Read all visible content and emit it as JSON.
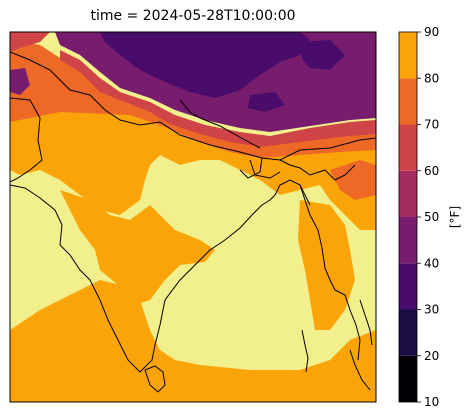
{
  "title": "time = 2024-05-28T10:00:00",
  "colorbar": {
    "label": "[°F]",
    "ticks": [
      "10",
      "20",
      "30",
      "40",
      "50",
      "60",
      "70",
      "80",
      "90"
    ],
    "bands": [
      {
        "from": 10,
        "to": 20,
        "color": "#000004"
      },
      {
        "from": 20,
        "to": 30,
        "color": "#1b0c41"
      },
      {
        "from": 30,
        "to": 40,
        "color": "#4a0c6b"
      },
      {
        "from": 40,
        "to": 50,
        "color": "#781c6d"
      },
      {
        "from": 50,
        "to": 60,
        "color": "#a52c60"
      },
      {
        "from": 60,
        "to": 70,
        "color": "#cf4446"
      },
      {
        "from": 70,
        "to": 80,
        "color": "#ed6925"
      },
      {
        "from": 80,
        "to": 90,
        "color": "#fba40a"
      }
    ],
    "top_band": {
      "color": "#f1f08c"
    },
    "min": 10,
    "max": 90
  },
  "map_colors": {
    "cold_dark": "#4a0c6b",
    "cold_purple": "#781c6d",
    "mid_red": "#cf4446",
    "warm_orange": "#ed6925",
    "hot_orange": "#fba40a",
    "hottest_yellow": "#f1f08c",
    "coastline": "#000000"
  }
}
